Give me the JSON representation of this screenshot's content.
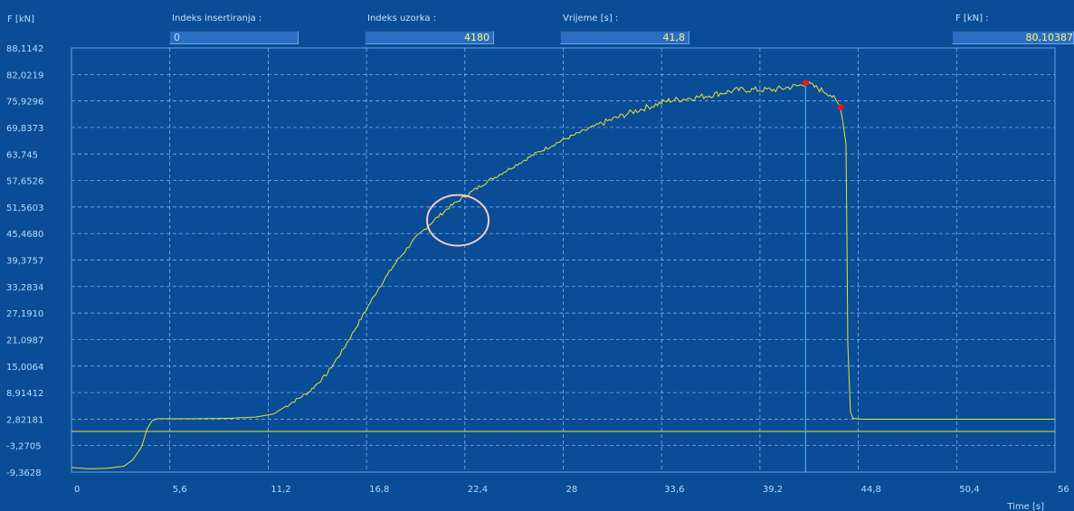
{
  "header": {
    "y_axis_title": "F [kN]",
    "fields": [
      {
        "id": "insertion-index",
        "label": "Indeks insertiranja :",
        "value": "0"
      },
      {
        "id": "sample-index",
        "label": "Indeks uzorka :",
        "value": "4180"
      },
      {
        "id": "time",
        "label": "Vrijeme [s] :",
        "value": "41,8"
      },
      {
        "id": "force",
        "label": "F [kN] :",
        "value": "80,10387"
      }
    ]
  },
  "colors": {
    "background": "#0a4c96",
    "plot_frame": "#5aa8e8",
    "grid": "#8fc3f2",
    "curve": "#e6e632",
    "cursor_line": "#40b4f0",
    "marker": "#e81818",
    "highlight_circle": "#f6c9c9",
    "tick_text": "#b9dbff"
  },
  "chart_data": {
    "type": "line",
    "title": "",
    "xlabel": "Time [s]",
    "ylabel": "F [kN]",
    "xlim": [
      0,
      56
    ],
    "ylim": [
      -9.3628,
      88.1142
    ],
    "grid": true,
    "x_tick_labels": [
      "0",
      "5,6",
      "11,2",
      "16,8",
      "22,4",
      "28",
      "33,6",
      "39,2",
      "44,8",
      "50,4",
      "56"
    ],
    "y_tick_labels": [
      "88,1142",
      "82,0219",
      "75,9296",
      "69,8373",
      "63,745",
      "57,6526",
      "51,5603",
      "45,4680",
      "39,3757",
      "33,2834",
      "27,1910",
      "21,0987",
      "15,0064",
      "8,91412",
      "2,82181",
      "-3,2705",
      "-9,3628"
    ],
    "baseline_y": 0,
    "cursor_x": 41.8,
    "series": [
      {
        "x": [
          0,
          1,
          2,
          3,
          3.5,
          4,
          4.3,
          4.6,
          4.9,
          5.5,
          7,
          9,
          10.5,
          11.5,
          12.5,
          13.5,
          14.5,
          15.5,
          16.5,
          17.5,
          18.5,
          19.5,
          20.5,
          21.5,
          22.4,
          23.5,
          25,
          26.5,
          28,
          30,
          32,
          34,
          36,
          38,
          40,
          41.5,
          41.8,
          42.5,
          43.2,
          43.8,
          44.1,
          44.15,
          44.2,
          44.35,
          44.5,
          44.7,
          45,
          47,
          50,
          53,
          56
        ],
        "y": [
          -8.3,
          -8.6,
          -8.5,
          -8.0,
          -6.5,
          -3.5,
          0.5,
          2.5,
          2.9,
          2.9,
          2.9,
          3.0,
          3.3,
          4.0,
          6.5,
          9.0,
          13.0,
          19.0,
          26.0,
          33.0,
          39.0,
          44.0,
          48.0,
          51.5,
          54.0,
          57.0,
          60.5,
          64.0,
          67.0,
          70.5,
          73.5,
          76.0,
          77.0,
          78.5,
          78.5,
          79.5,
          80.1,
          78.8,
          77.5,
          74.5,
          66.0,
          45.0,
          20.0,
          4.5,
          3.0,
          2.9,
          2.8,
          2.8,
          2.8,
          2.8,
          2.8
        ]
      }
    ],
    "markers": [
      {
        "x": 41.8,
        "y": 80.1
      },
      {
        "x": 43.8,
        "y": 74.5
      }
    ],
    "annotation_circle": {
      "x": 22.0,
      "y": 48.5
    }
  }
}
